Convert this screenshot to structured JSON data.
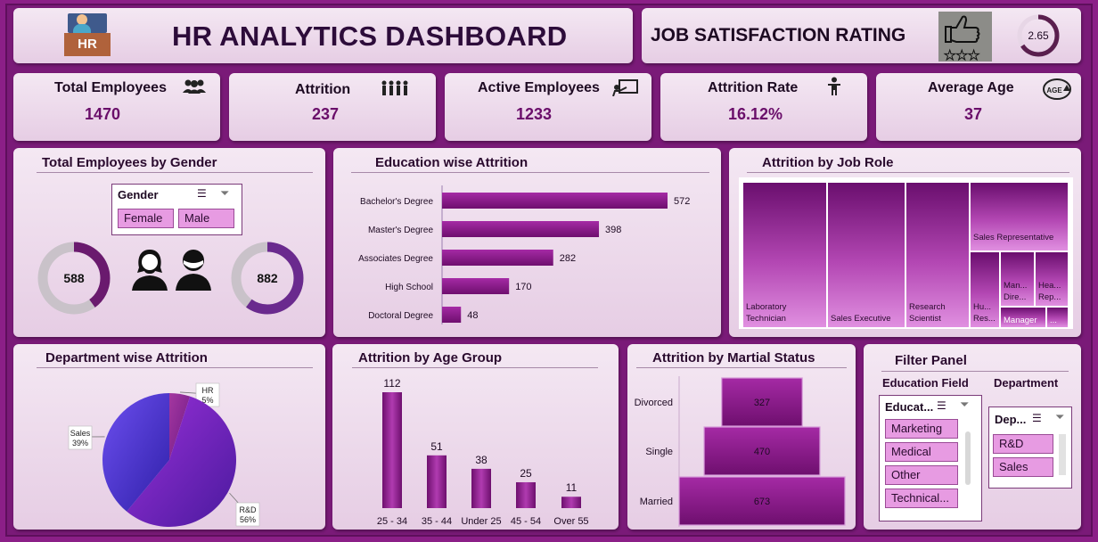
{
  "header": {
    "title": "HR ANALYTICS DASHBOARD",
    "logo_text": "HR"
  },
  "job_satisfaction": {
    "title": "JOB SATISFACTION RATING",
    "value": "2.65",
    "fraction": 0.66
  },
  "kpis": [
    {
      "label": "Total Employees",
      "value": "1470",
      "icon": "group-icon"
    },
    {
      "label": "Attrition",
      "value": "237",
      "icon": "people-row-icon"
    },
    {
      "label": "Active Employees",
      "value": "1233",
      "icon": "presentation-icon"
    },
    {
      "label": "Attrition Rate",
      "value": "16.12%",
      "icon": "person-icon"
    },
    {
      "label": "Average Age",
      "value": "37",
      "icon": "age-icon"
    }
  ],
  "gender_panel": {
    "title": "Total Employees by Gender",
    "slicer_title": "Gender",
    "options": [
      "Female",
      "Male"
    ],
    "female": {
      "value": "588",
      "fraction": 0.4
    },
    "male": {
      "value": "882",
      "fraction": 0.6
    }
  },
  "panels": {
    "education": "Education wise Attrition",
    "job_role": "Attrition by Job Role",
    "department": "Department wise Attrition",
    "age_group": "Attrition by Age Group",
    "marital": "Attrition by Martial Status",
    "filter": "Filter Panel"
  },
  "filter_panel": {
    "education_heading": "Education Field",
    "department_heading": "Department",
    "education_slicer_title": "Educat...",
    "education_options": [
      "Marketing",
      "Medical",
      "Other",
      "Technical..."
    ],
    "department_slicer_title": "Dep...",
    "department_options": [
      "R&D",
      "Sales"
    ]
  },
  "colors": {
    "accent": "#8b1a8b",
    "background": "#7a1a78",
    "panel": "#ecd9ea"
  },
  "chart_data": [
    {
      "id": "education",
      "type": "bar",
      "orientation": "horizontal",
      "title": "Education wise Attrition",
      "categories": [
        "Bachelor's Degree",
        "Master's Degree",
        "Associates Degree",
        "High School",
        "Doctoral Degree"
      ],
      "values": [
        572,
        398,
        282,
        170,
        48
      ]
    },
    {
      "id": "job_role",
      "type": "treemap",
      "title": "Attrition by Job Role",
      "labels": [
        "Laboratory Technician",
        "Sales Executive",
        "Research Scientist",
        "Sales Representative",
        "Hu... Res...",
        "Man... Dire...",
        "Hea... Rep...",
        "Manager",
        "..."
      ]
    },
    {
      "id": "department",
      "type": "pie",
      "title": "Department wise Attrition",
      "labels": [
        "HR",
        "R&D",
        "Sales"
      ],
      "values": [
        5,
        56,
        39
      ],
      "display": [
        "5%",
        "56%",
        "39%"
      ]
    },
    {
      "id": "age_group",
      "type": "bar",
      "title": "Attrition by Age Group",
      "categories": [
        "25 - 34",
        "35 - 44",
        "Under 25",
        "45 - 54",
        "Over 55"
      ],
      "values": [
        112,
        51,
        38,
        25,
        11
      ]
    },
    {
      "id": "marital",
      "type": "funnel",
      "title": "Attrition by Martial Status",
      "categories": [
        "Divorced",
        "Single",
        "Married"
      ],
      "values": [
        327,
        470,
        673
      ]
    }
  ]
}
